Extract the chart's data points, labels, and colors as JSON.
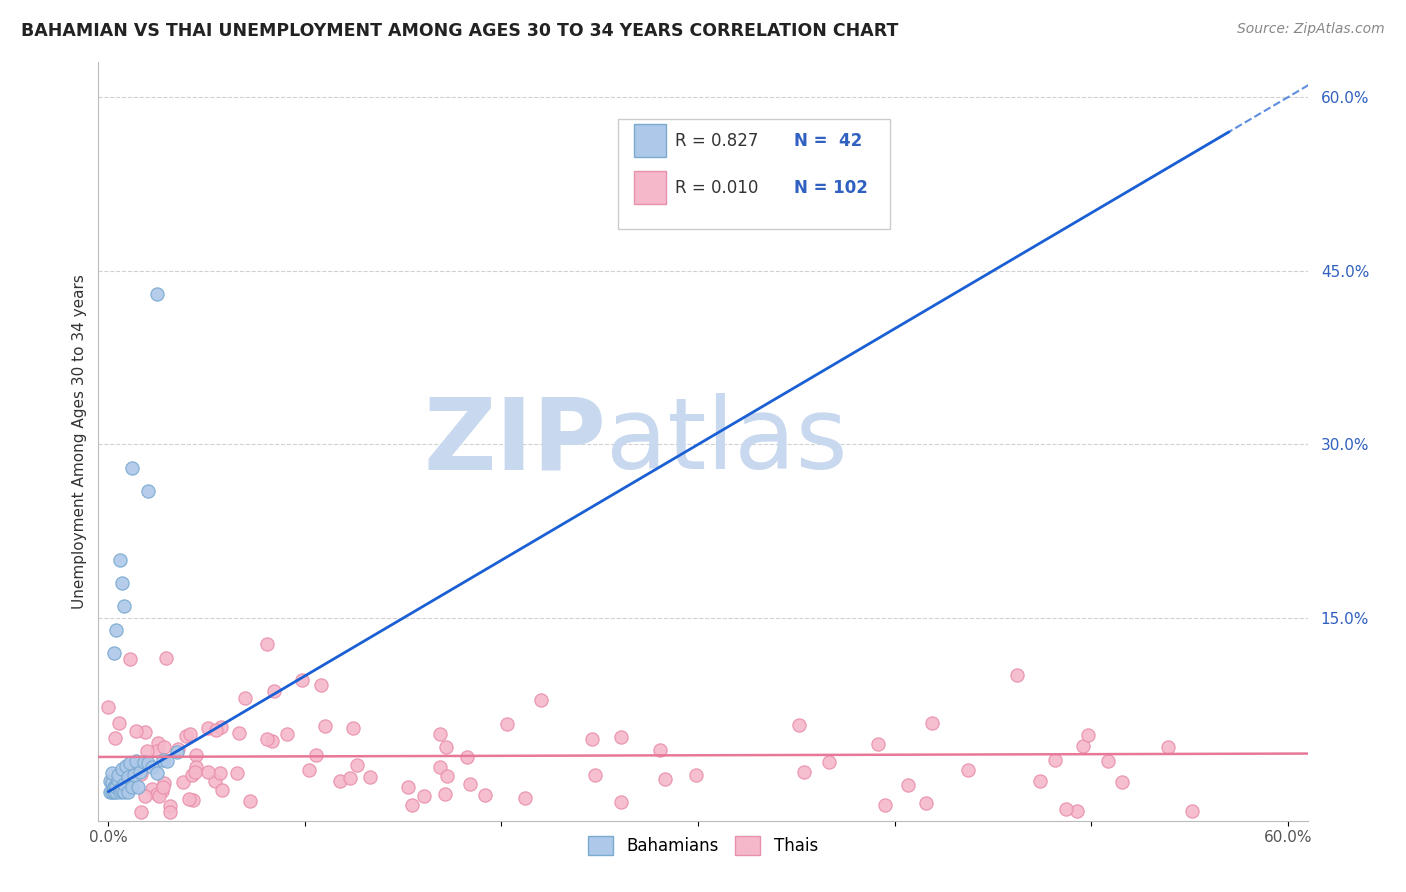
{
  "title": "BAHAMIAN VS THAI UNEMPLOYMENT AMONG AGES 30 TO 34 YEARS CORRELATION CHART",
  "source": "Source: ZipAtlas.com",
  "ylabel": "Unemployment Among Ages 30 to 34 years",
  "xlim": [
    -0.005,
    0.61
  ],
  "ylim": [
    -0.025,
    0.63
  ],
  "bahamian_color": "#adc8e8",
  "bahamian_edge_color": "#7aaad0",
  "thai_color": "#f5b8cb",
  "thai_edge_color": "#e890aa",
  "blue_line_color": "#1a5fd4",
  "pink_line_color": "#e87898",
  "watermark_zip_color": "#c8d8ee",
  "watermark_atlas_color": "#c8d8ee",
  "legend_R_bahamian": "0.827",
  "legend_N_bahamian": " 42",
  "legend_R_thai": "0.010",
  "legend_N_thai": "102",
  "legend_text_color": "#333333",
  "legend_num_color": "#3060c0",
  "right_tick_color": "#3060c0",
  "grid_color": "#cccccc",
  "title_color": "#222222",
  "source_color": "#888888"
}
